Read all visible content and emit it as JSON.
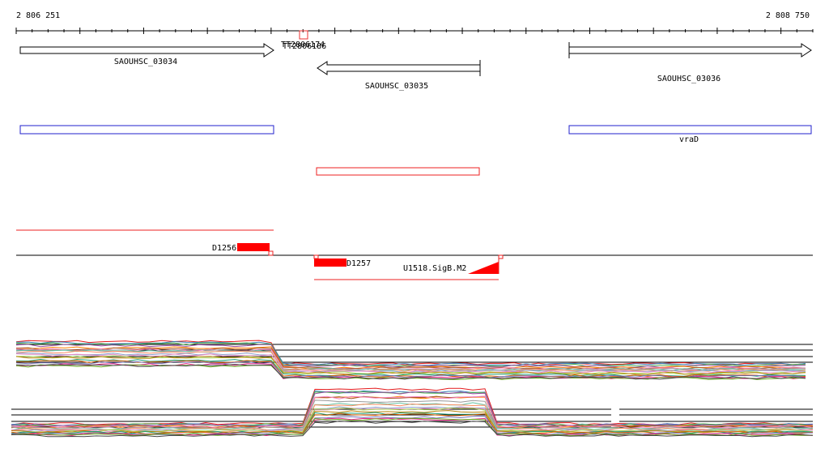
{
  "ruler": {
    "start": "2 806 251",
    "end": "2 808 750"
  },
  "terminators": [
    "TT2806174",
    "TT2806186"
  ],
  "genes": [
    {
      "name": "SAOUHSC_03034"
    },
    {
      "name": "SAOUHSC_03035"
    },
    {
      "name": "SAOUHSC_03036"
    }
  ],
  "gene_symbol": "vraD",
  "segments": [
    "D1256",
    "D1257"
  ],
  "motif": "U1518.SigB.M2"
}
